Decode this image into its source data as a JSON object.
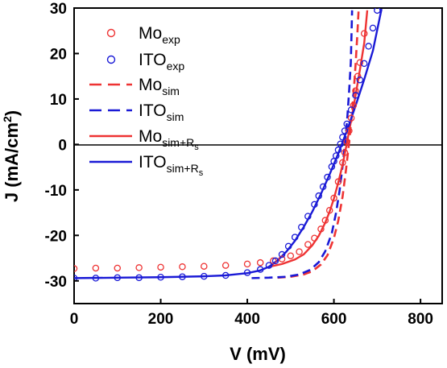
{
  "chart_data": {
    "type": "scatter",
    "xlabel": "V (mV)",
    "ylabel_main": "J (mA/cm",
    "ylabel_sup": "2",
    "ylabel_close": ")",
    "xlim": [
      0,
      850
    ],
    "ylim": [
      -35,
      30
    ],
    "x_ticks": [
      0,
      200,
      400,
      600,
      800
    ],
    "x_tick_labels": [
      "0",
      "200",
      "400",
      "600",
      "800"
    ],
    "y_ticks": [
      -30,
      -20,
      -10,
      0,
      10,
      20,
      30
    ],
    "y_tick_labels": [
      "-30",
      "-20",
      "-10",
      "0",
      "10",
      "20",
      "30"
    ],
    "grid": false,
    "legend_position": "top-left",
    "zero_line": true,
    "colors": {
      "mo": "#ee3333",
      "ito": "#1a1ad6"
    },
    "series": [
      {
        "key": "mo_exp",
        "kind": "markers",
        "color": "#ee3333",
        "legend_main": "Mo",
        "legend_sub": "exp",
        "legend_sub2": "",
        "x": [
          0,
          50,
          100,
          150,
          200,
          250,
          300,
          350,
          400,
          430,
          460,
          480,
          500,
          520,
          540,
          555,
          570,
          580,
          590,
          600,
          610,
          620,
          625,
          630,
          635,
          640,
          645,
          650,
          655,
          660,
          670
        ],
        "y": [
          -27.3,
          -27.2,
          -27.2,
          -27.1,
          -27.0,
          -26.9,
          -26.8,
          -26.6,
          -26.3,
          -26.0,
          -25.6,
          -25.2,
          -24.5,
          -23.6,
          -22.0,
          -20.6,
          -18.6,
          -16.7,
          -14.5,
          -11.8,
          -8.2,
          -4.0,
          -1.8,
          0.6,
          3.0,
          5.8,
          8.6,
          11.8,
          15.0,
          18.0,
          24.4
        ]
      },
      {
        "key": "ito_exp",
        "kind": "markers",
        "color": "#1a1ad6",
        "legend_main": "ITO",
        "legend_sub": "exp",
        "legend_sub2": "",
        "x": [
          0,
          50,
          100,
          150,
          200,
          250,
          300,
          350,
          400,
          430,
          450,
          465,
          480,
          495,
          510,
          525,
          540,
          555,
          565,
          575,
          585,
          595,
          600,
          605,
          610,
          615,
          620,
          625,
          630,
          640,
          650,
          660,
          670,
          680,
          690,
          700
        ],
        "y": [
          -29.4,
          -29.4,
          -29.3,
          -29.3,
          -29.2,
          -29.1,
          -29.0,
          -28.8,
          -28.2,
          -27.5,
          -26.6,
          -25.6,
          -24.2,
          -22.4,
          -20.4,
          -18.2,
          -15.8,
          -13.2,
          -11.3,
          -9.3,
          -7.2,
          -4.9,
          -3.7,
          -2.5,
          -1.2,
          0.1,
          1.6,
          3.0,
          4.5,
          7.6,
          10.8,
          14.2,
          17.8,
          21.6,
          25.6,
          29.5
        ]
      },
      {
        "key": "mo_sim",
        "kind": "dashed",
        "color": "#ee3333",
        "legend_main": "Mo",
        "legend_sub": "sim",
        "legend_sub2": "",
        "x": [
          470,
          500,
          530,
          550,
          570,
          585,
          600,
          610,
          620,
          628,
          635,
          641,
          646,
          650,
          654,
          657
        ],
        "y": [
          -29.3,
          -29.1,
          -28.6,
          -27.9,
          -26.4,
          -24.4,
          -20.6,
          -16.8,
          -11.5,
          -5.5,
          0.4,
          6.0,
          12.0,
          17.5,
          24.0,
          29.5
        ]
      },
      {
        "key": "ito_sim",
        "kind": "dashed",
        "color": "#1a1ad6",
        "legend_main": "ITO",
        "legend_sub": "sim",
        "legend_sub2": "",
        "x": [
          410,
          450,
          490,
          520,
          545,
          565,
          580,
          595,
          605,
          613,
          620,
          626,
          631,
          635,
          639,
          642
        ],
        "y": [
          -29.4,
          -29.3,
          -29.1,
          -28.6,
          -27.6,
          -25.9,
          -23.5,
          -19.6,
          -15.0,
          -10.2,
          -4.8,
          0.5,
          6.0,
          11.5,
          18.0,
          29.5
        ]
      },
      {
        "key": "mo_simrs",
        "kind": "solid",
        "color": "#ee3333",
        "legend_main": "Mo",
        "legend_sub": "sim+R",
        "legend_sub2": "s",
        "x": [
          450,
          480,
          510,
          530,
          550,
          565,
          580,
          590,
          600,
          610,
          620,
          630,
          640,
          650,
          660,
          670,
          677
        ],
        "y": [
          -26.9,
          -26.3,
          -25.3,
          -24.2,
          -22.2,
          -20.1,
          -17.2,
          -14.8,
          -11.9,
          -8.4,
          -4.5,
          0.3,
          5.4,
          10.8,
          16.4,
          22.3,
          29.5
        ]
      },
      {
        "key": "ito_simrs",
        "kind": "solid",
        "color": "#1a1ad6",
        "legend_main": "ITO",
        "legend_sub": "sim+R",
        "legend_sub2": "s",
        "x": [
          0,
          100,
          200,
          300,
          350,
          400,
          430,
          450,
          470,
          490,
          510,
          530,
          550,
          570,
          590,
          610,
          630,
          650,
          670,
          690,
          710
        ],
        "y": [
          -29.4,
          -29.3,
          -29.2,
          -29.0,
          -28.8,
          -28.3,
          -27.7,
          -26.9,
          -25.5,
          -23.6,
          -21.2,
          -18.2,
          -14.8,
          -10.9,
          -6.6,
          -2.0,
          3.0,
          8.5,
          14.3,
          20.6,
          29.8
        ]
      }
    ]
  }
}
